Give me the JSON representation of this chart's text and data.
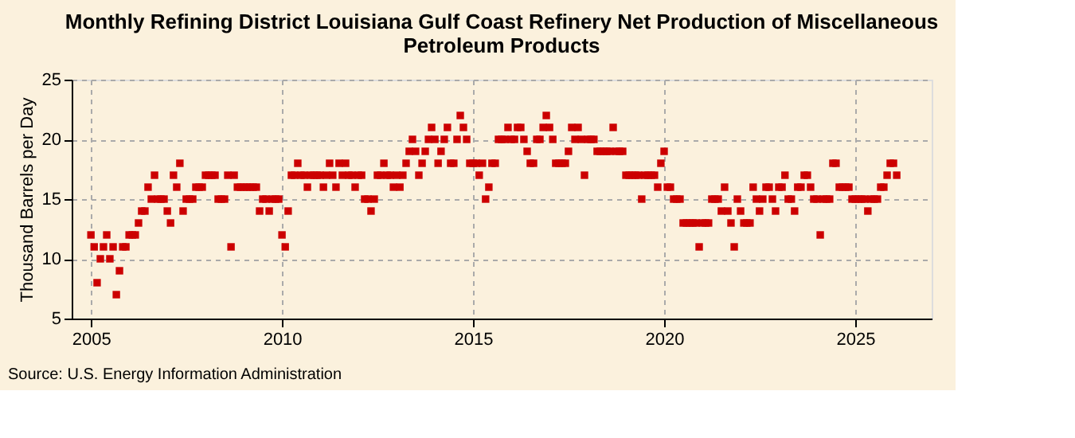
{
  "chart_data": {
    "type": "scatter",
    "title": "Monthly Refining District Louisiana Gulf Coast Refinery Net Production of Miscellaneous Petroleum Products",
    "ylabel": "Thousand Barrels per Day",
    "annotations": [
      "Source: U.S. Energy Information Administration"
    ],
    "marker": "square",
    "grid": true,
    "xlim": [
      "2004-07",
      "2027-01"
    ],
    "xticks": [
      "2005",
      "2010",
      "2015",
      "2020",
      "2025"
    ],
    "ylim": [
      5,
      25
    ],
    "yticks": [
      5,
      10,
      15,
      20,
      25
    ],
    "x": [
      "2005-01",
      "2005-02",
      "2005-03",
      "2005-04",
      "2005-05",
      "2005-06",
      "2005-07",
      "2005-08",
      "2005-09",
      "2005-10",
      "2005-11",
      "2005-12",
      "2006-01",
      "2006-02",
      "2006-03",
      "2006-04",
      "2006-05",
      "2006-06",
      "2006-07",
      "2006-08",
      "2006-09",
      "2006-10",
      "2006-11",
      "2006-12",
      "2007-01",
      "2007-02",
      "2007-03",
      "2007-04",
      "2007-05",
      "2007-06",
      "2007-07",
      "2007-08",
      "2007-09",
      "2007-10",
      "2007-11",
      "2007-12",
      "2008-01",
      "2008-02",
      "2008-03",
      "2008-04",
      "2008-05",
      "2008-06",
      "2008-07",
      "2008-08",
      "2008-09",
      "2008-10",
      "2008-11",
      "2008-12",
      "2009-01",
      "2009-02",
      "2009-03",
      "2009-04",
      "2009-05",
      "2009-06",
      "2009-07",
      "2009-08",
      "2009-09",
      "2009-10",
      "2009-11",
      "2009-12",
      "2010-01",
      "2010-02",
      "2010-03",
      "2010-04",
      "2010-05",
      "2010-06",
      "2010-07",
      "2010-08",
      "2010-09",
      "2010-10",
      "2010-11",
      "2010-12",
      "2011-01",
      "2011-02",
      "2011-03",
      "2011-04",
      "2011-05",
      "2011-06",
      "2011-07",
      "2011-08",
      "2011-09",
      "2011-10",
      "2011-11",
      "2011-12",
      "2012-01",
      "2012-02",
      "2012-03",
      "2012-04",
      "2012-05",
      "2012-06",
      "2012-07",
      "2012-08",
      "2012-09",
      "2012-10",
      "2012-11",
      "2012-12",
      "2013-01",
      "2013-02",
      "2013-03",
      "2013-04",
      "2013-05",
      "2013-06",
      "2013-07",
      "2013-08",
      "2013-09",
      "2013-10",
      "2013-11",
      "2013-12",
      "2014-01",
      "2014-02",
      "2014-03",
      "2014-04",
      "2014-05",
      "2014-06",
      "2014-07",
      "2014-08",
      "2014-09",
      "2014-10",
      "2014-11",
      "2014-12",
      "2015-01",
      "2015-02",
      "2015-03",
      "2015-04",
      "2015-05",
      "2015-06",
      "2015-07",
      "2015-08",
      "2015-09",
      "2015-10",
      "2015-11",
      "2015-12",
      "2016-01",
      "2016-02",
      "2016-03",
      "2016-04",
      "2016-05",
      "2016-06",
      "2016-07",
      "2016-08",
      "2016-09",
      "2016-10",
      "2016-11",
      "2016-12",
      "2017-01",
      "2017-02",
      "2017-03",
      "2017-04",
      "2017-05",
      "2017-06",
      "2017-07",
      "2017-08",
      "2017-09",
      "2017-10",
      "2017-11",
      "2017-12",
      "2018-01",
      "2018-02",
      "2018-03",
      "2018-04",
      "2018-05",
      "2018-06",
      "2018-07",
      "2018-08",
      "2018-09",
      "2018-10",
      "2018-11",
      "2018-12",
      "2019-01",
      "2019-02",
      "2019-03",
      "2019-04",
      "2019-05",
      "2019-06",
      "2019-07",
      "2019-08",
      "2019-09",
      "2019-10",
      "2019-11",
      "2019-12",
      "2020-01",
      "2020-02",
      "2020-03",
      "2020-04",
      "2020-05",
      "2020-06",
      "2020-07",
      "2020-08",
      "2020-09",
      "2020-10",
      "2020-11",
      "2020-12",
      "2021-01",
      "2021-02",
      "2021-03",
      "2021-04",
      "2021-05",
      "2021-06",
      "2021-07",
      "2021-08",
      "2021-09",
      "2021-10",
      "2021-11",
      "2021-12",
      "2022-01",
      "2022-02",
      "2022-03",
      "2022-04",
      "2022-05",
      "2022-06",
      "2022-07",
      "2022-08",
      "2022-09",
      "2022-10",
      "2022-11",
      "2022-12",
      "2023-01",
      "2023-02",
      "2023-03",
      "2023-04",
      "2023-05",
      "2023-06",
      "2023-07",
      "2023-08",
      "2023-09",
      "2023-10",
      "2023-11",
      "2023-12",
      "2024-01",
      "2024-02",
      "2024-03",
      "2024-04",
      "2024-05",
      "2024-06",
      "2024-07",
      "2024-08",
      "2024-09",
      "2024-10",
      "2024-11",
      "2024-12",
      "2025-01",
      "2025-02",
      "2025-03",
      "2025-04",
      "2025-05",
      "2025-06",
      "2025-07",
      "2025-08",
      "2025-09",
      "2025-10",
      "2025-11",
      "2025-12",
      "2026-01",
      "2026-02"
    ],
    "series": [
      {
        "color": "#cc0000",
        "values": [
          12,
          11,
          8,
          10,
          11,
          12,
          10,
          11,
          7,
          9,
          11,
          11,
          12,
          12,
          12,
          13,
          14,
          14,
          16,
          15,
          17,
          15,
          15,
          15,
          14,
          13,
          17,
          16,
          18,
          14,
          15,
          15,
          15,
          16,
          16,
          16,
          17,
          17,
          17,
          17,
          15,
          15,
          15,
          17,
          11,
          17,
          16,
          16,
          16,
          16,
          16,
          16,
          16,
          14,
          15,
          15,
          14,
          15,
          15,
          15,
          12,
          11,
          14,
          17,
          17,
          18,
          17,
          17,
          16,
          17,
          17,
          17,
          17,
          16,
          17,
          18,
          17,
          16,
          18,
          17,
          18,
          17,
          17,
          16,
          17,
          17,
          15,
          15,
          14,
          15,
          17,
          17,
          18,
          17,
          17,
          16,
          17,
          16,
          17,
          18,
          19,
          20,
          19,
          17,
          18,
          19,
          20,
          21,
          20,
          18,
          19,
          20,
          21,
          18,
          18,
          20,
          22,
          21,
          20,
          18,
          18,
          18,
          17,
          18,
          15,
          16,
          18,
          18,
          20,
          20,
          20,
          21,
          20,
          20,
          21,
          21,
          20,
          19,
          18,
          18,
          20,
          20,
          21,
          22,
          21,
          20,
          18,
          18,
          18,
          18,
          19,
          21,
          20,
          21,
          20,
          17,
          20,
          20,
          20,
          19,
          19,
          19,
          19,
          19,
          21,
          19,
          19,
          19,
          17,
          17,
          17,
          17,
          17,
          15,
          17,
          17,
          17,
          17,
          16,
          18,
          19,
          16,
          16,
          15,
          15,
          15,
          13,
          13,
          13,
          13,
          13,
          11,
          13,
          13,
          13,
          15,
          15,
          15,
          14,
          16,
          14,
          13,
          11,
          15,
          14,
          13,
          13,
          13,
          16,
          15,
          14,
          15,
          16,
          16,
          15,
          14,
          16,
          16,
          17,
          15,
          15,
          14,
          16,
          16,
          17,
          17,
          16,
          15,
          15,
          12,
          15,
          15,
          15,
          18,
          18,
          16,
          16,
          16,
          16,
          15,
          15,
          15,
          15,
          15,
          14,
          15,
          15,
          15,
          16,
          16,
          17,
          18,
          18,
          17
        ]
      }
    ]
  }
}
